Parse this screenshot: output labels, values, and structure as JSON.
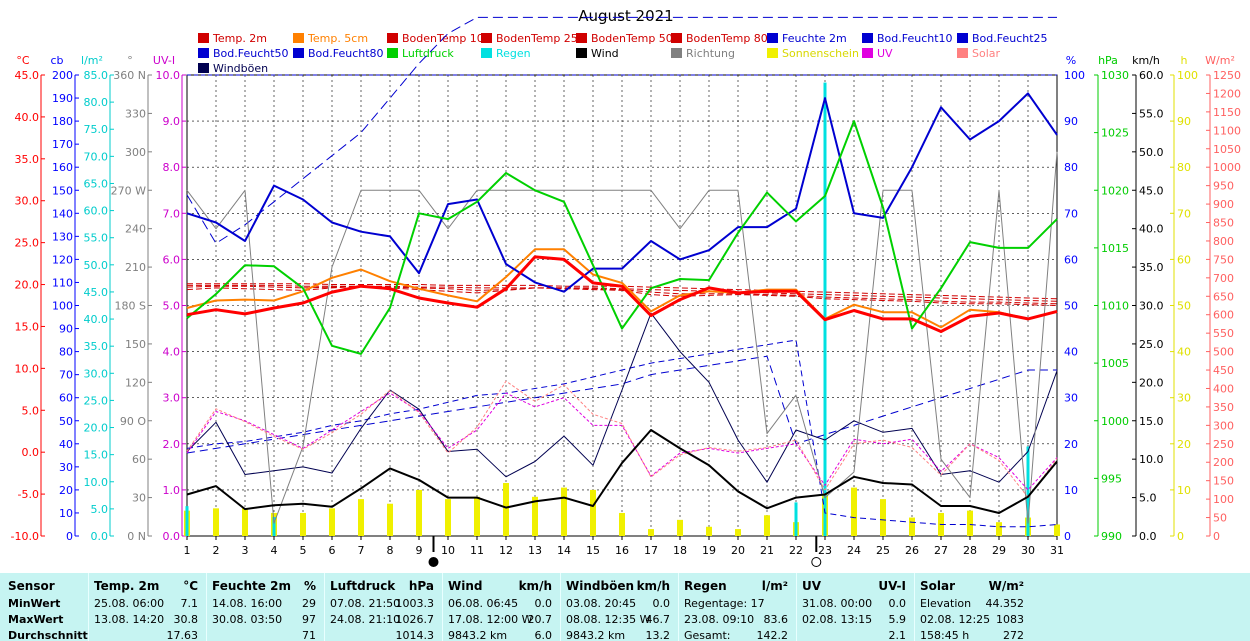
{
  "chart_data": {
    "type": "line",
    "title": "August 2021",
    "x": [
      1,
      2,
      3,
      4,
      5,
      6,
      7,
      8,
      9,
      10,
      11,
      12,
      13,
      14,
      15,
      16,
      17,
      18,
      19,
      20,
      21,
      22,
      23,
      24,
      25,
      26,
      27,
      28,
      29,
      30,
      31
    ],
    "xlim": [
      1,
      31
    ],
    "moon_phases": [
      {
        "day": 9.5,
        "phase": "new"
      },
      {
        "day": 22.7,
        "phase": "full"
      }
    ],
    "legend": [
      {
        "name": "Temp. 2m",
        "color": "#d00000"
      },
      {
        "name": "Temp. 5cm",
        "color": "#ff8000"
      },
      {
        "name": "BodenTemp 10",
        "color": "#d00000"
      },
      {
        "name": "BodenTemp 25",
        "color": "#d00000"
      },
      {
        "name": "BodenTemp 50",
        "color": "#d00000"
      },
      {
        "name": "BodenTemp 80",
        "color": "#d00000"
      },
      {
        "name": "Feuchte 2m",
        "color": "#0000d0"
      },
      {
        "name": "Bod.Feucht10",
        "color": "#0000d0"
      },
      {
        "name": "Bod.Feucht25",
        "color": "#0000d0"
      },
      {
        "name": "Bod.Feucht50",
        "color": "#0000d0"
      },
      {
        "name": "Bod.Feucht80",
        "color": "#0000d0"
      },
      {
        "name": "Luftdruck",
        "color": "#00d000"
      },
      {
        "name": "Regen",
        "color": "#00e0e0"
      },
      {
        "name": "Wind",
        "color": "#000000"
      },
      {
        "name": "Richtung",
        "color": "#808080"
      },
      {
        "name": "Sonnenschein",
        "color": "#f0f000"
      },
      {
        "name": "UV",
        "color": "#e000e0"
      },
      {
        "name": "Solar",
        "color": "#ff8080"
      },
      {
        "name": "Windböen",
        "color": "#000050"
      }
    ],
    "axes": {
      "left": [
        {
          "label": "°C",
          "color": "#ff0000",
          "min": -10,
          "max": 45,
          "step": 5,
          "decimals": 1
        },
        {
          "label": "cb",
          "color": "#0000ff",
          "min": 0,
          "max": 200,
          "step": 10,
          "decimals": 0
        },
        {
          "label": "l/m²",
          "color": "#00cccc",
          "min": 0,
          "max": 85,
          "step": 5,
          "decimals": 1
        },
        {
          "label": "°",
          "color": "#808080",
          "min": 0,
          "max": 360,
          "step": 30,
          "decimals": 0,
          "compass": {
            "0": "0 N",
            "90": "90 O",
            "180": "180 S",
            "270": "270 W",
            "360": "360 N"
          }
        },
        {
          "label": "UV-I",
          "color": "#cc00cc",
          "min": 0,
          "max": 10,
          "step": 1,
          "decimals": 1
        }
      ],
      "right": [
        {
          "label": "%",
          "color": "#0000ff",
          "min": 0,
          "max": 100,
          "step": 10,
          "decimals": 0
        },
        {
          "label": "hPa",
          "color": "#00cc00",
          "min": 990,
          "max": 1030,
          "step": 5,
          "decimals": 0
        },
        {
          "label": "km/h",
          "color": "#000000",
          "min": 0,
          "max": 60,
          "step": 5,
          "decimals": 1
        },
        {
          "label": "h",
          "color": "#e0e000",
          "min": 0,
          "max": 100,
          "step": 10,
          "decimals": 0
        },
        {
          "label": "W/m²",
          "color": "#ff6060",
          "min": 0,
          "max": 1250,
          "step": 50,
          "decimals": 0
        }
      ]
    },
    "series": [
      {
        "name": "Temp. 2m",
        "color": "#ff0000",
        "width": 3,
        "axis": "°C",
        "values": [
          16.4,
          17.0,
          16.5,
          17.2,
          17.8,
          19.1,
          19.8,
          19.5,
          18.4,
          17.8,
          17.3,
          19.5,
          23.3,
          23.0,
          20.2,
          19.8,
          16.3,
          18.2,
          19.6,
          19.0,
          19.2,
          19.2,
          15.8,
          16.9,
          15.9,
          15.9,
          14.4,
          16.2,
          16.6,
          15.9,
          16.8
        ]
      },
      {
        "name": "Temp. 5cm",
        "color": "#ff8000",
        "width": 2,
        "axis": "°C",
        "values": [
          17.2,
          18.1,
          18.2,
          18.1,
          19.2,
          20.8,
          21.8,
          20.4,
          19.5,
          18.7,
          18.0,
          20.9,
          24.2,
          24.2,
          21.2,
          20.2,
          16.8,
          18.7,
          19.2,
          19.0,
          19.4,
          19.4,
          15.9,
          17.6,
          16.7,
          16.7,
          14.9,
          17.0,
          16.7,
          15.9,
          16.8
        ]
      },
      {
        "name": "BodenTemp 10",
        "color": "#d00000",
        "width": 1,
        "dash": "6,3",
        "axis": "°C",
        "values": [
          19.4,
          19.6,
          19.5,
          19.4,
          19.3,
          19.6,
          19.8,
          19.6,
          19.4,
          19.2,
          19.0,
          19.3,
          19.6,
          19.5,
          19.4,
          19.3,
          18.8,
          18.6,
          18.7,
          18.8,
          18.7,
          18.6,
          18.3,
          18.2,
          18.1,
          18.0,
          17.8,
          17.7,
          17.7,
          17.6,
          17.5
        ]
      },
      {
        "name": "BodenTemp 25",
        "color": "#d00000",
        "width": 1,
        "dash": "6,3",
        "axis": "°C",
        "values": [
          19.7,
          19.8,
          19.8,
          19.7,
          19.6,
          19.7,
          19.8,
          19.7,
          19.6,
          19.5,
          19.3,
          19.4,
          19.6,
          19.6,
          19.5,
          19.4,
          19.1,
          18.9,
          18.9,
          18.9,
          18.8,
          18.7,
          18.5,
          18.4,
          18.3,
          18.2,
          18.0,
          17.9,
          17.9,
          17.8,
          17.7
        ]
      },
      {
        "name": "BodenTemp 50",
        "color": "#d00000",
        "width": 1,
        "dash": "6,3",
        "axis": "°C",
        "values": [
          19.9,
          19.9,
          19.9,
          19.9,
          19.8,
          19.8,
          19.8,
          19.8,
          19.7,
          19.7,
          19.6,
          19.6,
          19.6,
          19.6,
          19.6,
          19.5,
          19.4,
          19.3,
          19.2,
          19.1,
          19.0,
          18.9,
          18.8,
          18.7,
          18.6,
          18.5,
          18.4,
          18.3,
          18.2,
          18.1,
          18.0
        ]
      },
      {
        "name": "BodenTemp 80",
        "color": "#d00000",
        "width": 1,
        "dash": "6,3",
        "axis": "°C",
        "values": [
          20.1,
          20.1,
          20.1,
          20.1,
          20.1,
          20.0,
          20.0,
          20.0,
          20.0,
          19.9,
          19.9,
          19.9,
          19.9,
          19.8,
          19.8,
          19.8,
          19.7,
          19.6,
          19.5,
          19.4,
          19.3,
          19.2,
          19.1,
          19.0,
          18.9,
          18.8,
          18.7,
          18.6,
          18.5,
          18.4,
          18.3
        ]
      },
      {
        "name": "Feuchte 2m",
        "color": "#0000d0",
        "width": 2,
        "axis": "%",
        "values": [
          70,
          68,
          64,
          76,
          73,
          68,
          66,
          65,
          57,
          72,
          73,
          59,
          55,
          53,
          58,
          58,
          64,
          60,
          62,
          67,
          67,
          71,
          95,
          70,
          69,
          80,
          93,
          86,
          90,
          96,
          87
        ]
      },
      {
        "name": "Bod.Feucht10",
        "color": "#0000d0",
        "width": 1,
        "dash": "10,5",
        "axis": "cb",
        "values": [
          148,
          127,
          135,
          145,
          155,
          165,
          175,
          190,
          205,
          218,
          225,
          225,
          225,
          225,
          225,
          225,
          225,
          225,
          225,
          225,
          225,
          225,
          225,
          225,
          225,
          225,
          225,
          225,
          225,
          225,
          225
        ]
      },
      {
        "name": "Bod.Feucht25",
        "color": "#0000d0",
        "width": 1,
        "dash": "4,3",
        "axis": "cb",
        "values": [
          200,
          200,
          200,
          200,
          200,
          200,
          200,
          200,
          200,
          200,
          200,
          200,
          200,
          200,
          200,
          200,
          200,
          200,
          200,
          200,
          200,
          200,
          200,
          200,
          200,
          200,
          200,
          200,
          200,
          200,
          200
        ]
      },
      {
        "name": "Bod.Feucht50",
        "color": "#0000d0",
        "width": 1,
        "dash": "6,4",
        "axis": "cb",
        "values": [
          38,
          40,
          41,
          43,
          45,
          48,
          50,
          53,
          55,
          58,
          61,
          62,
          64,
          66,
          69,
          72,
          75,
          77,
          79,
          81,
          83,
          85,
          10,
          8,
          7,
          6,
          5,
          5,
          4,
          4,
          5
        ]
      },
      {
        "name": "Bod.Feucht80",
        "color": "#0000d0",
        "width": 1,
        "dash": "8,5",
        "axis": "cb",
        "values": [
          36,
          38,
          40,
          42,
          44,
          46,
          48,
          50,
          52,
          54,
          56,
          58,
          60,
          62,
          64,
          66,
          70,
          72,
          74,
          76,
          78,
          40,
          44,
          48,
          52,
          56,
          60,
          64,
          68,
          72,
          72
        ]
      },
      {
        "name": "Luftdruck",
        "color": "#00d000",
        "width": 2,
        "axis": "hPa",
        "values": [
          1008.9,
          1011.0,
          1013.5,
          1013.4,
          1011.5,
          1006.5,
          1005.8,
          1009.8,
          1018.0,
          1017.5,
          1019.0,
          1021.5,
          1020.0,
          1019.0,
          1013.5,
          1008.0,
          1011.5,
          1012.3,
          1012.2,
          1016.3,
          1019.8,
          1017.3,
          1019.5,
          1026.0,
          1018.5,
          1008.0,
          1011.5,
          1015.5,
          1015.0,
          1015.0,
          1017.5
        ]
      },
      {
        "name": "Wind",
        "color": "#000000",
        "width": 2,
        "axis": "km/h",
        "values": [
          5.4,
          6.5,
          3.5,
          4.0,
          4.2,
          3.8,
          6.2,
          8.8,
          7.3,
          5.0,
          5.0,
          3.7,
          4.5,
          5.0,
          3.9,
          9.5,
          13.8,
          11.4,
          9.2,
          5.8,
          3.6,
          5.0,
          5.4,
          7.7,
          6.9,
          6.7,
          3.9,
          3.9,
          3.0,
          5.1,
          9.7
        ]
      },
      {
        "name": "Windböen",
        "color": "#000050",
        "width": 1,
        "axis": "km/h",
        "values": [
          11.0,
          14.8,
          8.0,
          8.5,
          9.0,
          8.2,
          14.0,
          19.0,
          16.5,
          11.0,
          11.3,
          7.7,
          9.7,
          13.0,
          9.2,
          19.0,
          29.0,
          24.0,
          20.0,
          12.5,
          7.0,
          13.8,
          12.5,
          15.0,
          13.5,
          14.0,
          8.0,
          8.5,
          7.0,
          11.0,
          21.5
        ]
      },
      {
        "name": "Richtung",
        "color": "#808080",
        "width": 1,
        "axis": "°",
        "values": [
          270,
          240,
          270,
          10,
          70,
          210,
          270,
          270,
          270,
          240,
          270,
          270,
          270,
          270,
          270,
          270,
          270,
          240,
          270,
          270,
          80,
          110,
          30,
          50,
          270,
          270,
          60,
          30,
          270,
          10,
          300
        ]
      },
      {
        "name": "UV",
        "color": "#e000e0",
        "width": 1,
        "dash": "3,2",
        "axis": "UV-I",
        "values": [
          1.8,
          2.7,
          2.5,
          2.2,
          1.9,
          2.3,
          2.7,
          3.1,
          2.7,
          1.9,
          2.3,
          3.1,
          2.8,
          3.0,
          2.4,
          2.4,
          1.3,
          1.8,
          1.9,
          1.8,
          1.9,
          2.0,
          1.1,
          2.1,
          2.0,
          2.1,
          1.4,
          2.0,
          1.7,
          1.0,
          1.7
        ]
      },
      {
        "name": "Solar",
        "color": "#ff8080",
        "width": 1,
        "dash": "3,2",
        "axis": "W/m²",
        "values": [
          230,
          345,
          310,
          270,
          235,
          280,
          330,
          395,
          335,
          225,
          295,
          420,
          365,
          410,
          330,
          305,
          160,
          220,
          240,
          230,
          240,
          260,
          125,
          250,
          260,
          240,
          165,
          250,
          205,
          105,
          210
        ]
      }
    ],
    "bars": [
      {
        "name": "Sonnenschein",
        "color": "#f0f000",
        "axis": "h",
        "width": 6,
        "values": [
          5.5,
          6.0,
          6.0,
          5.0,
          5.0,
          6.0,
          8.0,
          7.0,
          10.0,
          8.0,
          8.5,
          11.5,
          8.5,
          10.5,
          10.0,
          5.0,
          1.5,
          3.5,
          2.0,
          1.5,
          4.5,
          3.0,
          9.0,
          10.5,
          8.0,
          4.0,
          5.0,
          5.5,
          3.0,
          4.0,
          2.5
        ]
      },
      {
        "name": "Regen",
        "color": "#00e0e0",
        "axis": "l/m²",
        "width": 3,
        "values": [
          5.5,
          0.0,
          0.0,
          3.5,
          0.0,
          0.0,
          0.0,
          0.0,
          0.0,
          0.0,
          0.0,
          0.0,
          0.0,
          0.0,
          0.0,
          0.0,
          0.0,
          0.0,
          0.0,
          0.0,
          0.0,
          6.2,
          83.6,
          0.0,
          0.0,
          0.0,
          0.0,
          0.0,
          0.0,
          16.5,
          0.0
        ]
      }
    ]
  },
  "stats": {
    "blocks": [
      {
        "header": "Sensor",
        "rows": [
          "MinWert",
          "MaxWert",
          "Durchschnitt"
        ]
      },
      {
        "header": "Temp. 2m",
        "unit": "°C",
        "rows": [
          {
            "t": "25.08.  06:00",
            "v": "7.1"
          },
          {
            "t": "13.08.  14:20",
            "v": "30.8"
          },
          {
            "t": "",
            "v": "17.63"
          }
        ]
      },
      {
        "header": "Feuchte 2m",
        "unit": "%",
        "rows": [
          {
            "t": "14.08.  16:00",
            "v": "29"
          },
          {
            "t": "30.08.  03:50",
            "v": "97"
          },
          {
            "t": "",
            "v": "71"
          }
        ]
      },
      {
        "header": "Luftdruck",
        "unit": "hPa",
        "rows": [
          {
            "t": "07.08.  21:50",
            "v": "1003.3"
          },
          {
            "t": "24.08.  21:10",
            "v": "1026.7"
          },
          {
            "t": "",
            "v": "1014.3"
          }
        ]
      },
      {
        "header": "Wind",
        "unit": "km/h",
        "rows": [
          {
            "t": "06.08.  06:45",
            "v": "0.0"
          },
          {
            "t": "17.08.  12:00  W",
            "v": "20.7"
          },
          {
            "t": "9843.2 km",
            "v": "6.0"
          }
        ]
      },
      {
        "header": "Windböen",
        "unit": "km/h",
        "rows": [
          {
            "t": "03.08.  20:45",
            "v": "0.0"
          },
          {
            "t": "08.08.  12:35  W",
            "v": "46.7"
          },
          {
            "t": "9843.2 km",
            "v": "13.2"
          }
        ]
      },
      {
        "header": "Regen",
        "unit": "l/m²",
        "rows": [
          {
            "t": "Regentage: 17",
            "v": ""
          },
          {
            "t": "23.08.  09:10",
            "v": "83.6"
          },
          {
            "t": "Gesamt:",
            "v": "142.2"
          }
        ]
      },
      {
        "header": "UV",
        "unit": "UV-I",
        "rows": [
          {
            "t": "31.08.  00:00",
            "v": "0.0"
          },
          {
            "t": "02.08.  13:15",
            "v": "5.9"
          },
          {
            "t": "",
            "v": "2.1"
          }
        ]
      },
      {
        "header": "Solar",
        "unit": "W/m²",
        "rows": [
          {
            "t": "Elevation",
            "v": "44.352"
          },
          {
            "t": "02.08.  12:25",
            "v": "1083"
          },
          {
            "t": "158:45 h",
            "v": "272"
          }
        ]
      }
    ]
  }
}
